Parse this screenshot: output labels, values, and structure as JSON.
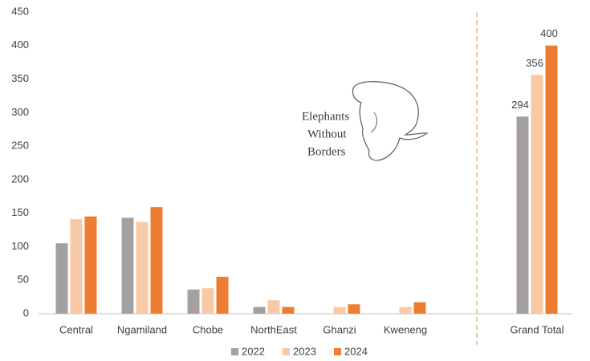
{
  "chart_data": {
    "type": "bar",
    "categories": [
      "Central",
      "Ngamiland",
      "Chobe",
      "NorthEast",
      "Ghanzi",
      "Kweneng",
      "Grand Total"
    ],
    "series": [
      {
        "name": "2022",
        "color": "#a5a0a0",
        "values": [
          105,
          143,
          36,
          10,
          null,
          null,
          294
        ]
      },
      {
        "name": "2023",
        "color": "#f8c9a4",
        "values": [
          141,
          137,
          38,
          20,
          10,
          10,
          356
        ]
      },
      {
        "name": "2024",
        "color": "#ed7d31",
        "values": [
          145,
          159,
          55,
          10,
          14,
          17,
          400
        ]
      }
    ],
    "ylim": [
      0,
      450
    ],
    "yticks": [
      0,
      50,
      100,
      150,
      200,
      250,
      300,
      350,
      400,
      450
    ],
    "grid": false,
    "legend": "bottom",
    "logo": [
      "Elephants",
      "Without",
      "Borders"
    ]
  }
}
